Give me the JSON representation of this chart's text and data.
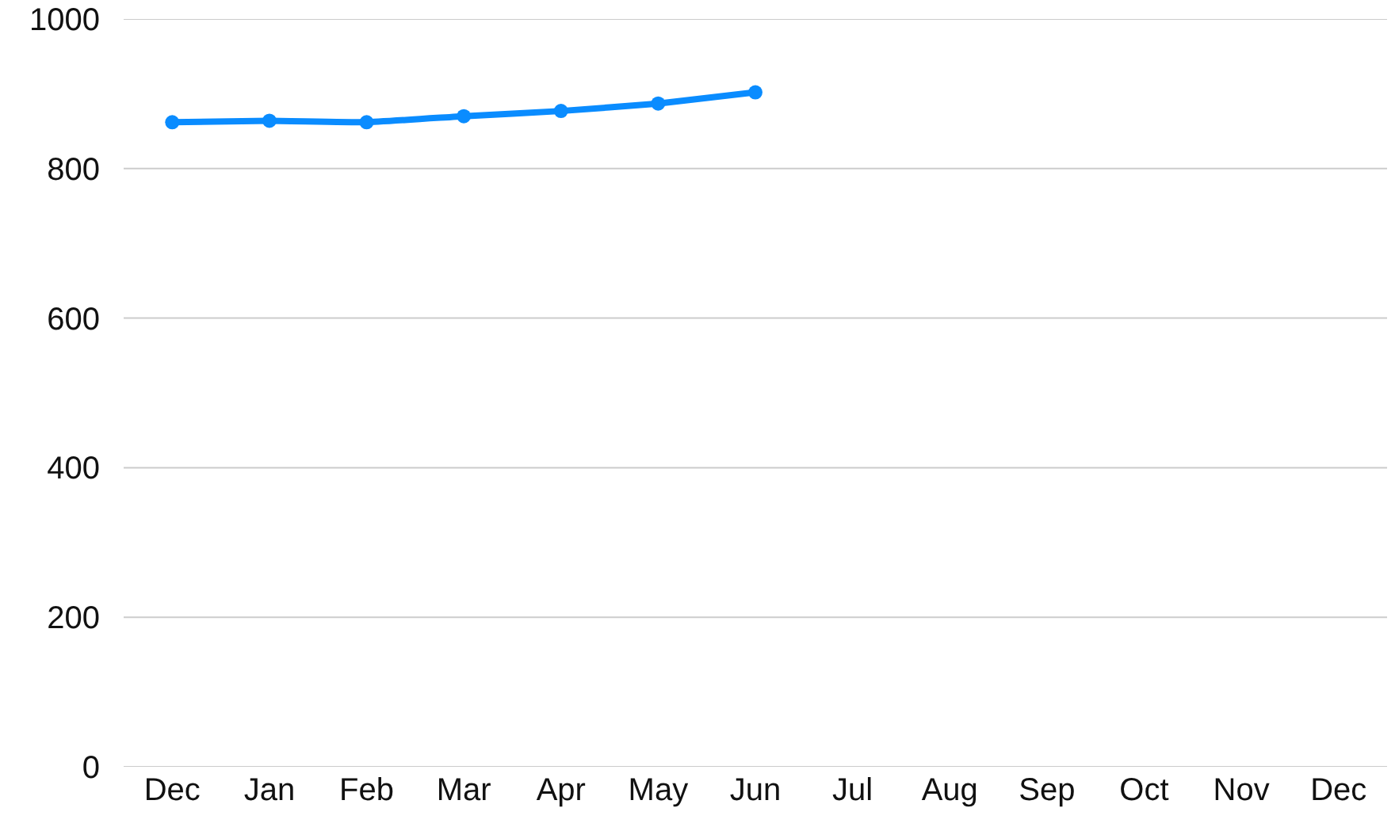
{
  "chart_data": {
    "type": "line",
    "categories": [
      "Dec",
      "Jan",
      "Feb",
      "Mar",
      "Apr",
      "May",
      "Jun",
      "Jul",
      "Aug",
      "Sep",
      "Oct",
      "Nov",
      "Dec"
    ],
    "series": [
      {
        "color": "#0a8cff",
        "values": [
          862,
          864,
          862,
          870,
          877,
          887,
          902,
          null,
          null,
          null,
          null,
          null,
          null
        ]
      }
    ],
    "ylim": [
      0,
      1000
    ],
    "yticks": [
      0,
      200,
      400,
      600,
      800,
      1000
    ],
    "grid": "y",
    "marker": "circle",
    "line_style": "solid"
  }
}
